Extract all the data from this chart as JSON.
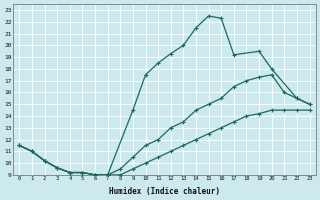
{
  "xlabel": "Humidex (Indice chaleur)",
  "bg_color": "#cce9ed",
  "line_color": "#1a6b5a",
  "grid_color": "#b0d5d8",
  "xlim": [
    -0.5,
    23.5
  ],
  "ylim": [
    9,
    23.5
  ],
  "yticks": [
    9,
    10,
    11,
    12,
    13,
    14,
    15,
    16,
    17,
    18,
    19,
    20,
    21,
    22,
    23
  ],
  "xticks": [
    0,
    1,
    2,
    3,
    4,
    5,
    6,
    7,
    8,
    9,
    10,
    11,
    12,
    13,
    14,
    15,
    16,
    17,
    18,
    19,
    20,
    21,
    22,
    23
  ],
  "line1_x": [
    0,
    1,
    2,
    3,
    4,
    5,
    6,
    7,
    9,
    10,
    11,
    12,
    13,
    14,
    15,
    16,
    17,
    19,
    20,
    22,
    23
  ],
  "line1_y": [
    11.5,
    11.0,
    10.2,
    9.6,
    9.2,
    9.2,
    9.0,
    9.0,
    14.5,
    17.5,
    18.5,
    19.3,
    20.0,
    21.5,
    22.5,
    22.3,
    19.2,
    19.5,
    18.0,
    15.5,
    15.0
  ],
  "line2_x": [
    0,
    1,
    2,
    3,
    4,
    5,
    6,
    7,
    8,
    9,
    10,
    11,
    12,
    13,
    14,
    15,
    16,
    17,
    18,
    19,
    20,
    21,
    22,
    23
  ],
  "line2_y": [
    11.5,
    11.0,
    10.2,
    9.6,
    9.2,
    9.2,
    9.0,
    9.0,
    9.5,
    10.5,
    11.5,
    12.0,
    13.0,
    13.5,
    14.5,
    15.0,
    15.5,
    16.5,
    17.0,
    17.3,
    17.5,
    16.0,
    15.5,
    15.0
  ],
  "line3_x": [
    0,
    1,
    2,
    3,
    4,
    5,
    6,
    7,
    8,
    9,
    10,
    11,
    12,
    13,
    14,
    15,
    16,
    17,
    18,
    19,
    20,
    21,
    22,
    23
  ],
  "line3_y": [
    11.5,
    11.0,
    10.2,
    9.6,
    9.2,
    9.2,
    9.0,
    9.0,
    9.0,
    9.5,
    10.0,
    10.5,
    11.0,
    11.5,
    12.0,
    12.5,
    13.0,
    13.5,
    14.0,
    14.2,
    14.5,
    14.5,
    14.5,
    14.5
  ]
}
